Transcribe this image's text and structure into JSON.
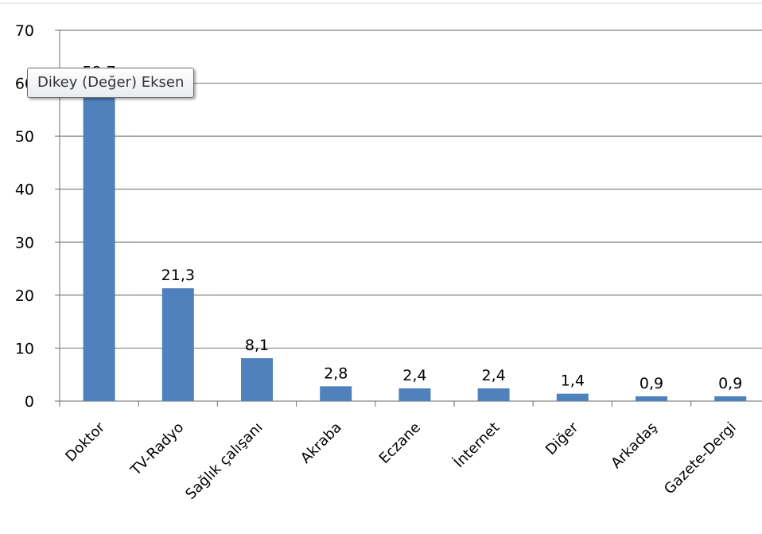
{
  "chart_data": {
    "type": "bar",
    "categories": [
      "Doktor",
      "TV-Radyo",
      "Sağlık çalışanı",
      "Akraba",
      "Eczane",
      "İnternet",
      "Diğer",
      "Arkadaş",
      "Gazete-Dergi"
    ],
    "values": [
      59.7,
      21.3,
      8.1,
      2.8,
      2.4,
      2.4,
      1.4,
      0.9,
      0.9
    ],
    "value_labels": [
      "59,7",
      "21,3",
      "8,1",
      "2,8",
      "2,4",
      "2,4",
      "1,4",
      "0,9",
      "0,9"
    ],
    "ylim": [
      0,
      70
    ],
    "yticks": [
      "0",
      "10",
      "20",
      "30",
      "40",
      "50",
      "60",
      "70"
    ],
    "bar_color": "#4f81bd",
    "grid": true,
    "legend": "none"
  },
  "tooltip": {
    "text": "Dikey (Değer) Eksen"
  }
}
